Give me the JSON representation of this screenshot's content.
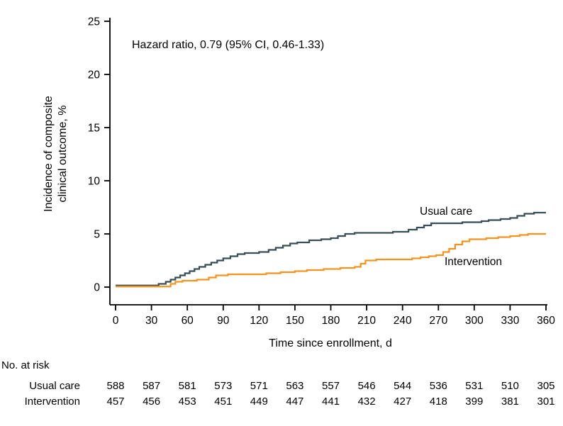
{
  "chart_data": {
    "type": "line",
    "subtype": "kaplan-meier-step",
    "title": "",
    "annotation": "Hazard ratio, 0.79 (95% CI, 0.46-1.33)",
    "xlabel": "Time since enrollment, d",
    "ylabel": "Incidence of composite clinical outcome, %",
    "ylabel_lines": [
      "Incidence of composite",
      "clinical outcome, %"
    ],
    "xlim": [
      0,
      360
    ],
    "ylim": [
      0,
      25
    ],
    "xticks": [
      0,
      30,
      60,
      90,
      120,
      150,
      180,
      210,
      240,
      270,
      300,
      330,
      360
    ],
    "yticks": [
      0,
      5,
      10,
      15,
      20,
      25
    ],
    "grid": false,
    "legend_position": "inline-labels",
    "series": [
      {
        "name": "Usual care",
        "color": "#374e55",
        "points": [
          [
            0,
            0.15
          ],
          [
            30,
            0.15
          ],
          [
            36,
            0.3
          ],
          [
            42,
            0.5
          ],
          [
            46,
            0.7
          ],
          [
            50,
            0.9
          ],
          [
            54,
            1.1
          ],
          [
            58,
            1.3
          ],
          [
            62,
            1.5
          ],
          [
            66,
            1.7
          ],
          [
            70,
            1.9
          ],
          [
            75,
            2.1
          ],
          [
            80,
            2.3
          ],
          [
            85,
            2.5
          ],
          [
            90,
            2.7
          ],
          [
            96,
            2.9
          ],
          [
            102,
            3.1
          ],
          [
            108,
            3.2
          ],
          [
            120,
            3.3
          ],
          [
            128,
            3.5
          ],
          [
            134,
            3.7
          ],
          [
            140,
            3.9
          ],
          [
            146,
            4.1
          ],
          [
            152,
            4.2
          ],
          [
            162,
            4.4
          ],
          [
            172,
            4.5
          ],
          [
            180,
            4.6
          ],
          [
            186,
            4.8
          ],
          [
            192,
            5.0
          ],
          [
            200,
            5.1
          ],
          [
            232,
            5.2
          ],
          [
            245,
            5.4
          ],
          [
            252,
            5.6
          ],
          [
            258,
            5.8
          ],
          [
            264,
            6.0
          ],
          [
            290,
            6.1
          ],
          [
            306,
            6.2
          ],
          [
            312,
            6.3
          ],
          [
            322,
            6.4
          ],
          [
            330,
            6.5
          ],
          [
            336,
            6.7
          ],
          [
            342,
            6.9
          ],
          [
            350,
            7.0
          ],
          [
            360,
            7.0
          ]
        ]
      },
      {
        "name": "Intervention",
        "color": "#f6921e",
        "points": [
          [
            0,
            0.05
          ],
          [
            42,
            0.05
          ],
          [
            46,
            0.3
          ],
          [
            50,
            0.5
          ],
          [
            56,
            0.6
          ],
          [
            68,
            0.7
          ],
          [
            78,
            0.9
          ],
          [
            84,
            1.1
          ],
          [
            94,
            1.2
          ],
          [
            126,
            1.3
          ],
          [
            138,
            1.4
          ],
          [
            150,
            1.5
          ],
          [
            160,
            1.6
          ],
          [
            174,
            1.7
          ],
          [
            188,
            1.8
          ],
          [
            200,
            1.9
          ],
          [
            205,
            2.2
          ],
          [
            209,
            2.5
          ],
          [
            218,
            2.6
          ],
          [
            248,
            2.7
          ],
          [
            255,
            2.8
          ],
          [
            262,
            2.9
          ],
          [
            268,
            3.0
          ],
          [
            274,
            3.3
          ],
          [
            279,
            3.6
          ],
          [
            284,
            4.0
          ],
          [
            290,
            4.3
          ],
          [
            296,
            4.5
          ],
          [
            310,
            4.6
          ],
          [
            320,
            4.7
          ],
          [
            330,
            4.8
          ],
          [
            338,
            4.9
          ],
          [
            345,
            5.0
          ],
          [
            360,
            5.0
          ]
        ]
      }
    ]
  },
  "risk_table": {
    "title": "No. at risk",
    "rows": [
      {
        "label": "Usual care",
        "values": [
          588,
          587,
          581,
          573,
          571,
          563,
          557,
          546,
          544,
          536,
          531,
          510,
          305
        ]
      },
      {
        "label": "Intervention",
        "values": [
          457,
          456,
          453,
          451,
          449,
          447,
          441,
          432,
          427,
          418,
          399,
          381,
          301
        ]
      }
    ]
  }
}
